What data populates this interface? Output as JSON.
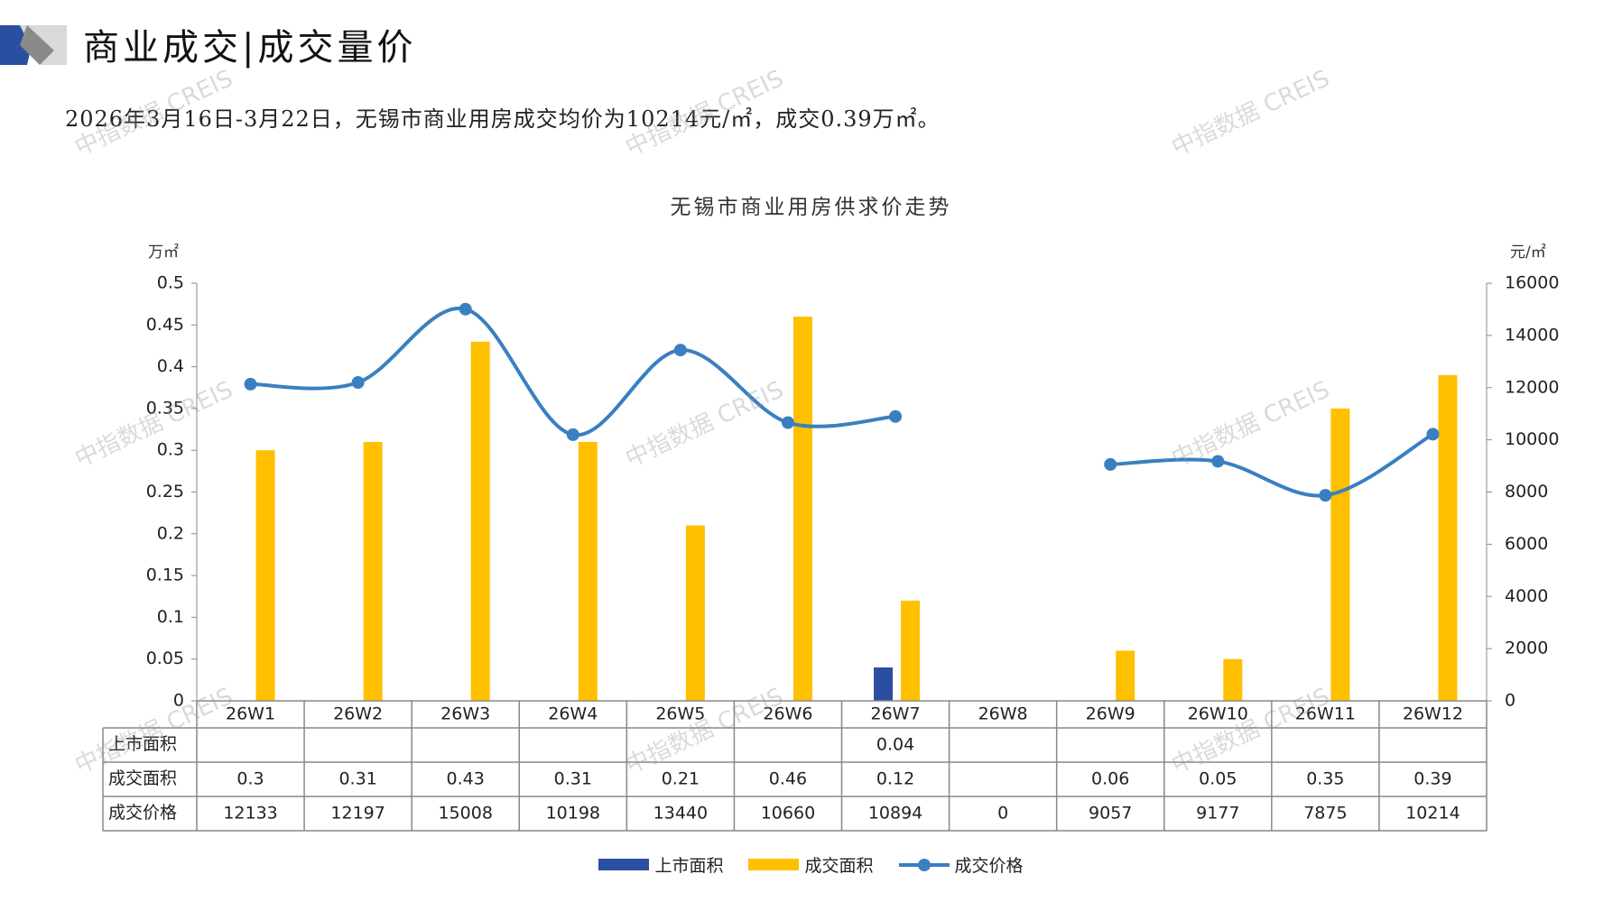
{
  "header": {
    "title": "商业成交|成交量价",
    "subtitle": "2026年3月16日-3月22日，无锡市商业用房成交均价为10214元/㎡，成交0.39万㎡。"
  },
  "watermark": "中指数据 CREIS",
  "colors": {
    "supply": "#2b4fa0",
    "deal_area": "#ffc000",
    "price": "#3a7fc1",
    "deco_blue": "#2b4fa0",
    "deco_gray": "#9a9a9a"
  },
  "chart_data": {
    "type": "bar",
    "title": "无锡市商业用房供求价走势",
    "ylabel_left": "万㎡",
    "ylabel_right": "元/㎡",
    "ylim_left": [
      0,
      0.5
    ],
    "ylim_right": [
      0,
      16000
    ],
    "yticks_left": [
      "0",
      "0.05",
      "0.1",
      "0.15",
      "0.2",
      "0.25",
      "0.3",
      "0.35",
      "0.4",
      "0.45",
      "0.5"
    ],
    "yticks_right": [
      "0",
      "2000",
      "4000",
      "6000",
      "8000",
      "10000",
      "12000",
      "14000",
      "16000"
    ],
    "categories": [
      "26W1",
      "26W2",
      "26W3",
      "26W4",
      "26W5",
      "26W6",
      "26W7",
      "26W8",
      "26W9",
      "26W10",
      "26W11",
      "26W12"
    ],
    "series": [
      {
        "name": "上市面积",
        "type": "bar",
        "axis": "left",
        "values": [
          null,
          null,
          null,
          null,
          null,
          null,
          0.04,
          null,
          null,
          null,
          null,
          null
        ],
        "labels": [
          "",
          "",
          "",
          "",
          "",
          "",
          "0.04",
          "",
          "",
          "",
          "",
          ""
        ]
      },
      {
        "name": "成交面积",
        "type": "bar",
        "axis": "left",
        "values": [
          0.3,
          0.31,
          0.43,
          0.31,
          0.21,
          0.46,
          0.12,
          null,
          0.06,
          0.05,
          0.35,
          0.39
        ],
        "labels": [
          "0.3",
          "0.31",
          "0.43",
          "0.31",
          "0.21",
          "0.46",
          "0.12",
          "",
          "0.06",
          "0.05",
          "0.35",
          "0.39"
        ]
      },
      {
        "name": "成交价格",
        "type": "line",
        "axis": "right",
        "values": [
          12133,
          12197,
          15008,
          10198,
          13440,
          10660,
          10894,
          0,
          9057,
          9177,
          7875,
          10214
        ],
        "labels": [
          "12133",
          "12197",
          "15008",
          "10198",
          "13440",
          "10660",
          "10894",
          "0",
          "9057",
          "9177",
          "7875",
          "10214"
        ]
      }
    ],
    "legend_position": "bottom",
    "grid": false
  }
}
